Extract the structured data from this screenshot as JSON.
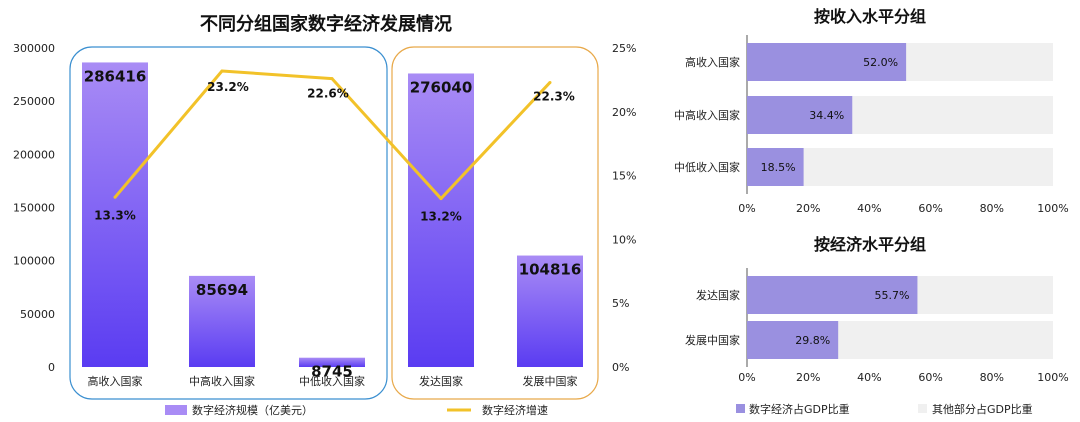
{
  "colors": {
    "bar_top": "#a98cf5",
    "bar_bottom": "#5a3cf2",
    "line": "#f2c229",
    "group_high": "#3a8fd0",
    "group_dev": "#e8a94a",
    "hbar": "#9a90e0",
    "hbar_bg": "#f0f0f0"
  },
  "chart_data": [
    {
      "type": "bar",
      "title": "不同分组国家数字经济发展情况",
      "categories": [
        "高收入国家",
        "中高收入国家",
        "中低收入国家",
        "发达国家",
        "发展中国家"
      ],
      "series": [
        {
          "name": "数字经济规模（亿美元）",
          "type": "bar",
          "axis": "left",
          "values": [
            286416,
            85694,
            8745,
            276040,
            104816
          ],
          "labels": [
            "286416",
            "85694",
            "8745",
            "276040",
            "104816"
          ]
        },
        {
          "name": "数字经济增速",
          "type": "line",
          "axis": "right",
          "values": [
            13.3,
            23.2,
            22.6,
            13.2,
            22.3
          ],
          "labels": [
            "13.3%",
            "23.2%",
            "22.6%",
            "13.2%",
            "22.3%"
          ]
        }
      ],
      "ylim": [
        0,
        300000
      ],
      "yticks": [
        "0",
        "50000",
        "100000",
        "150000",
        "200000",
        "250000",
        "300000"
      ],
      "y2lim": [
        0,
        25
      ],
      "y2ticks": [
        "0%",
        "5%",
        "10%",
        "15%",
        "20%",
        "25%"
      ],
      "legend": "bottom"
    },
    {
      "type": "bar",
      "orientation": "horizontal",
      "stacked": true,
      "title": "按收入水平分组",
      "categories": [
        "高收入国家",
        "中高收入国家",
        "中低收入国家"
      ],
      "values": [
        52.0,
        34.4,
        18.5
      ],
      "labels": [
        "52.0%",
        "34.4%",
        "18.5%"
      ],
      "xlim": [
        0,
        100
      ],
      "xticks": [
        "0%",
        "20%",
        "40%",
        "60%",
        "80%",
        "100%"
      ]
    },
    {
      "type": "bar",
      "orientation": "horizontal",
      "stacked": true,
      "title": "按经济水平分组",
      "categories": [
        "发达国家",
        "发展中国家"
      ],
      "values": [
        55.7,
        29.8
      ],
      "labels": [
        "55.7%",
        "29.8%"
      ],
      "xlim": [
        0,
        100
      ],
      "xticks": [
        "0%",
        "20%",
        "40%",
        "60%",
        "80%",
        "100%"
      ],
      "legend_items": [
        "数字经济占GDP比重",
        "其他部分占GDP比重"
      ],
      "legend": "bottom"
    }
  ]
}
